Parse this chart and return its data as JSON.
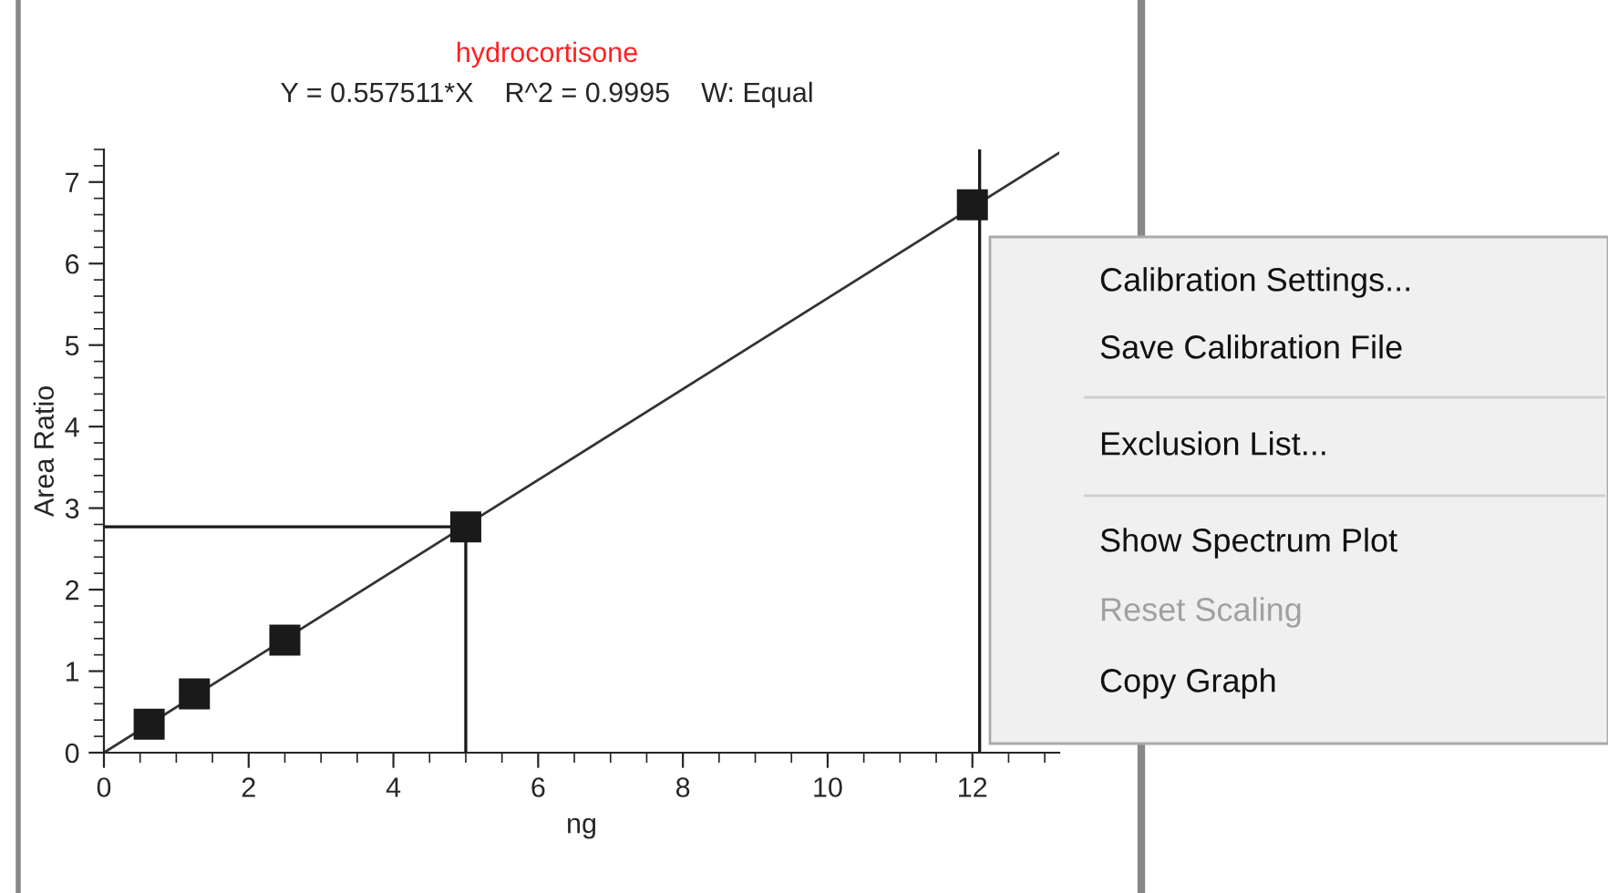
{
  "chart_data": {
    "type": "scatter",
    "title": "hydrocortisone",
    "subtitle": "Y = 0.557511*X    R^2 = 0.9995    W: Equal",
    "xlabel": "ng",
    "ylabel": "Area Ratio",
    "series": [
      {
        "color": "#1a1a1a",
        "marker": "square",
        "x": [
          0.625,
          1.25,
          2.5,
          5,
          12
        ],
        "values": [
          0.35,
          0.72,
          1.38,
          2.77,
          6.72
        ]
      },
      {
        "type": "line",
        "color": "#333333",
        "marker": "none",
        "line_style": "solid",
        "x": [
          0,
          13.2
        ],
        "values": [
          0,
          7.36
        ]
      }
    ],
    "ref_lines": [
      {
        "axis": "x",
        "value": 5,
        "color": "#1a1a1a"
      },
      {
        "axis": "y",
        "value": 2.77,
        "color": "#1a1a1a"
      },
      {
        "axis": "x",
        "value": 12.1,
        "color": "#1a1a1a"
      }
    ],
    "xlim": [
      0,
      13.2
    ],
    "ylim": [
      0,
      7.4
    ],
    "xticks": [
      0,
      2,
      4,
      6,
      8,
      10,
      12
    ],
    "yticks": [
      0,
      1,
      2,
      3,
      4,
      5,
      6,
      7
    ],
    "grid": false,
    "annotations": [
      "Calibration Settings...",
      "Save Calibration File",
      "Exclusion List...",
      "Show Spectrum Plot",
      "Reset Scaling",
      "Copy Graph"
    ]
  }
}
